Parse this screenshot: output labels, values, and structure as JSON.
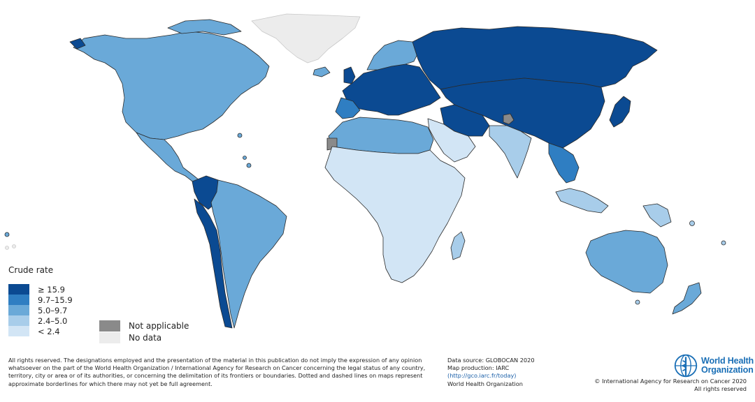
{
  "map": {
    "legend": {
      "title": "Crude rate",
      "classes": [
        {
          "label": "≥ 15.9",
          "color": "#0b4a92"
        },
        {
          "label": "9.7–15.9",
          "color": "#2f7ec2"
        },
        {
          "label": "5.0–9.7",
          "color": "#6aa9d8"
        },
        {
          "label": "2.4–5.0",
          "color": "#a8cdea"
        },
        {
          "label": "< 2.4",
          "color": "#d2e5f5"
        }
      ],
      "not_applicable": {
        "label": "Not applicable",
        "color": "#8a8a8a"
      },
      "no_data": {
        "label": "No data",
        "color": "#ececec"
      }
    }
  },
  "footer": {
    "disclaimer": "All rights reserved. The designations employed and the presentation of the material in this publication do not imply the expression of any opinion whatsoever on the part of the World Health Organization / International Agency for Research on Cancer concerning the legal status of any country, territory, city or area or of its authorities, or concerning the delimitation of its frontiers or boundaries. Dotted and dashed lines on maps represent approximate borderlines for which there may not yet be full agreement.",
    "source_line": "Data source: GLOBOCAN 2020",
    "production_line": "Map production: IARC",
    "link": "(http://gco.iarc.fr/today)",
    "org_line": "World Health Organization",
    "copyright_line1": "© International Agency for Research on Cancer 2020",
    "copyright_line2": "All rights reserved"
  },
  "logo": {
    "line1": "World Health",
    "line2": "Organization",
    "icon": "who-emblem-icon"
  }
}
